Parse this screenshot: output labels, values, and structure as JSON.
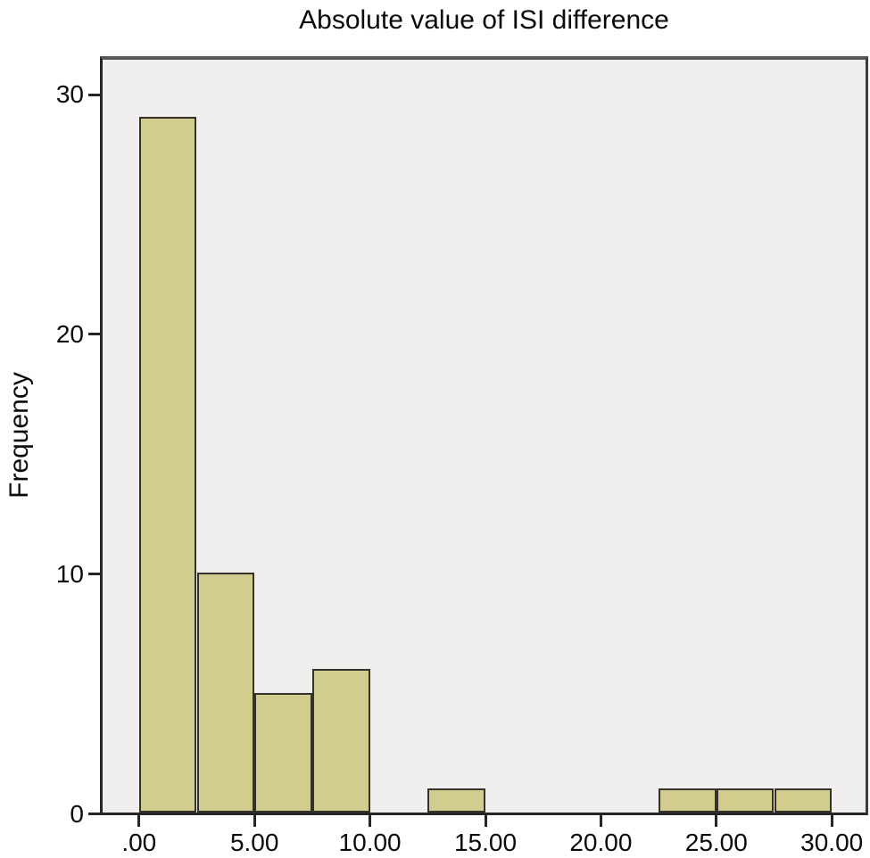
{
  "chart": {
    "title": "Absolute value of ISI difference",
    "ylabel": "Frequency"
  },
  "chart_data": {
    "type": "bar",
    "subtype": "histogram",
    "title": "Absolute value of ISI difference",
    "xlabel": "",
    "ylabel": "Frequency",
    "bin_width": 2.5,
    "bins": [
      {
        "x0": 0.0,
        "x1": 2.5,
        "frequency": 29
      },
      {
        "x0": 2.5,
        "x1": 5.0,
        "frequency": 10
      },
      {
        "x0": 5.0,
        "x1": 7.5,
        "frequency": 5
      },
      {
        "x0": 7.5,
        "x1": 10.0,
        "frequency": 6
      },
      {
        "x0": 12.5,
        "x1": 15.0,
        "frequency": 1
      },
      {
        "x0": 22.5,
        "x1": 25.0,
        "frequency": 1
      },
      {
        "x0": 25.0,
        "x1": 27.5,
        "frequency": 1
      },
      {
        "x0": 27.5,
        "x1": 30.0,
        "frequency": 1
      }
    ],
    "x_ticks": [
      {
        "value": 0,
        "label": ".00"
      },
      {
        "value": 5,
        "label": "5.00"
      },
      {
        "value": 10,
        "label": "10.00"
      },
      {
        "value": 15,
        "label": "15.00"
      },
      {
        "value": 20,
        "label": "20.00"
      },
      {
        "value": 25,
        "label": "25.00"
      },
      {
        "value": 30,
        "label": "30.00"
      }
    ],
    "y_ticks": [
      {
        "value": 0,
        "label": "0"
      },
      {
        "value": 10,
        "label": "10"
      },
      {
        "value": 20,
        "label": "20"
      },
      {
        "value": 30,
        "label": "30"
      }
    ],
    "xlim": [
      -1.7,
      31.6
    ],
    "ylim": [
      0,
      31.6
    ],
    "grid": false,
    "legend": "none",
    "colors": {
      "bar_fill": "#d2cd8f",
      "bar_stroke": "#33332c",
      "panel_background": "#f0efee",
      "page_background": "#ffffff",
      "axis": "#262626",
      "panel_frame": "#59595b",
      "text": "#0a0a0a"
    }
  }
}
